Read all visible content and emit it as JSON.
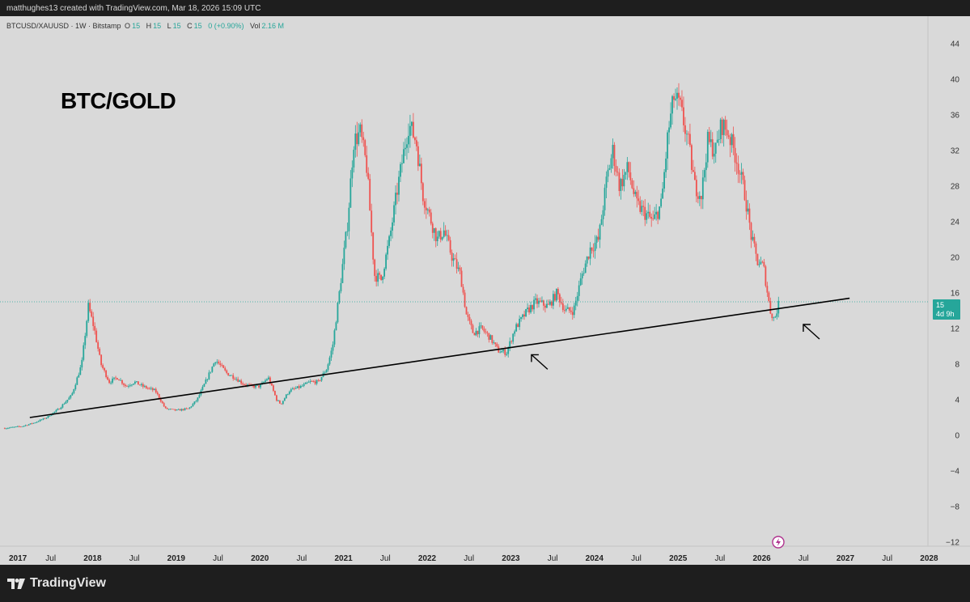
{
  "attribution": "matthughes13 created with TradingView.com, Mar 18, 2026 15:09 UTC",
  "legend": {
    "symbol": "BTCUSD/XAUUSD · 1W · Bitstamp",
    "o_label": "O",
    "o_value": "15",
    "h_label": "H",
    "h_value": "15",
    "l_label": "L",
    "l_value": "15",
    "c_label": "C",
    "c_value": "15",
    "change": "0 (+0.90%)",
    "vol_label": "Vol",
    "vol_value": "2.16 M"
  },
  "overlay_title": "BTC/GOLD",
  "price_badge": {
    "price": "15",
    "countdown": "4d 9h"
  },
  "footer": {
    "brand": "TradingView"
  },
  "colors": {
    "up": "#26a69a",
    "down": "#ef5350",
    "background": "#d9d9d9",
    "trendline": "#000000"
  },
  "chart_data": {
    "type": "candlestick",
    "symbol": "BTCUSD/XAUUSD",
    "interval": "1W",
    "exchange": "Bitstamp",
    "title": "BTC/GOLD",
    "x_time_range": [
      "2017-01",
      "2028-01"
    ],
    "y_range": [
      -13,
      47
    ],
    "y_ticks": [
      44,
      40,
      36,
      32,
      28,
      24,
      20,
      16,
      12,
      8,
      4,
      0,
      -4,
      -8,
      -12
    ],
    "y_tick_labels": [
      "44",
      "40",
      "36",
      "32",
      "28",
      "24",
      "20",
      "16",
      "12",
      "8",
      "4",
      "0",
      "−4",
      "−8",
      "−12"
    ],
    "x_tick_labels": [
      {
        "t": 2017.0,
        "label": "2017",
        "year": true
      },
      {
        "t": 2017.5,
        "label": "Jul"
      },
      {
        "t": 2018.0,
        "label": "2018",
        "year": true
      },
      {
        "t": 2018.5,
        "label": "Jul"
      },
      {
        "t": 2019.0,
        "label": "2019",
        "year": true
      },
      {
        "t": 2019.5,
        "label": "Jul"
      },
      {
        "t": 2020.0,
        "label": "2020",
        "year": true
      },
      {
        "t": 2020.5,
        "label": "Jul"
      },
      {
        "t": 2021.0,
        "label": "2021",
        "year": true
      },
      {
        "t": 2021.5,
        "label": "Jul"
      },
      {
        "t": 2022.0,
        "label": "2022",
        "year": true
      },
      {
        "t": 2022.5,
        "label": "Jul"
      },
      {
        "t": 2023.0,
        "label": "2023",
        "year": true
      },
      {
        "t": 2023.5,
        "label": "Jul"
      },
      {
        "t": 2024.0,
        "label": "2024",
        "year": true
      },
      {
        "t": 2024.5,
        "label": "Jul"
      },
      {
        "t": 2025.0,
        "label": "2025",
        "year": true
      },
      {
        "t": 2025.5,
        "label": "Jul"
      },
      {
        "t": 2026.0,
        "label": "2026",
        "year": true
      },
      {
        "t": 2026.5,
        "label": "Jul"
      },
      {
        "t": 2027.0,
        "label": "2027",
        "year": true
      },
      {
        "t": 2027.5,
        "label": "Jul"
      },
      {
        "t": 2028.0,
        "label": "2028",
        "year": true
      }
    ],
    "last_price": 15,
    "price_path": [
      [
        2016.95,
        0.8
      ],
      [
        2017.15,
        1.0
      ],
      [
        2017.3,
        1.4
      ],
      [
        2017.45,
        2.0
      ],
      [
        2017.6,
        3.0
      ],
      [
        2017.75,
        4.5
      ],
      [
        2017.87,
        8.0
      ],
      [
        2017.95,
        14.5
      ],
      [
        2018.02,
        12.0
      ],
      [
        2018.1,
        8.0
      ],
      [
        2018.2,
        6.0
      ],
      [
        2018.3,
        6.5
      ],
      [
        2018.4,
        5.5
      ],
      [
        2018.5,
        6.0
      ],
      [
        2018.6,
        5.5
      ],
      [
        2018.75,
        5.0
      ],
      [
        2018.87,
        3.0
      ],
      [
        2019.0,
        2.8
      ],
      [
        2019.15,
        3.0
      ],
      [
        2019.25,
        4.0
      ],
      [
        2019.35,
        6.0
      ],
      [
        2019.47,
        8.5
      ],
      [
        2019.6,
        7.0
      ],
      [
        2019.7,
        6.5
      ],
      [
        2019.8,
        5.8
      ],
      [
        2019.9,
        5.5
      ],
      [
        2020.0,
        5.5
      ],
      [
        2020.1,
        6.5
      ],
      [
        2020.2,
        4.0
      ],
      [
        2020.25,
        3.5
      ],
      [
        2020.35,
        5.0
      ],
      [
        2020.5,
        5.5
      ],
      [
        2020.6,
        6.0
      ],
      [
        2020.7,
        6.0
      ],
      [
        2020.8,
        7.5
      ],
      [
        2020.87,
        10.0
      ],
      [
        2020.95,
        16.0
      ],
      [
        2021.05,
        24.0
      ],
      [
        2021.12,
        33.0
      ],
      [
        2021.2,
        34.0
      ],
      [
        2021.28,
        30.0
      ],
      [
        2021.37,
        18.0
      ],
      [
        2021.45,
        17.5
      ],
      [
        2021.55,
        22.0
      ],
      [
        2021.65,
        28.0
      ],
      [
        2021.78,
        35.0
      ],
      [
        2021.87,
        33.0
      ],
      [
        2021.95,
        27.0
      ],
      [
        2022.05,
        24.0
      ],
      [
        2022.12,
        22.0
      ],
      [
        2022.2,
        23.0
      ],
      [
        2022.3,
        20.0
      ],
      [
        2022.4,
        18.0
      ],
      [
        2022.47,
        13.5
      ],
      [
        2022.55,
        11.5
      ],
      [
        2022.65,
        12.0
      ],
      [
        2022.75,
        11.0
      ],
      [
        2022.85,
        9.5
      ],
      [
        2022.95,
        9.3
      ],
      [
        2023.05,
        12.0
      ],
      [
        2023.2,
        14.0
      ],
      [
        2023.3,
        15.0
      ],
      [
        2023.45,
        14.5
      ],
      [
        2023.55,
        16.0
      ],
      [
        2023.65,
        14.0
      ],
      [
        2023.75,
        14.0
      ],
      [
        2023.85,
        18.0
      ],
      [
        2023.95,
        21.0
      ],
      [
        2024.05,
        22.0
      ],
      [
        2024.15,
        29.0
      ],
      [
        2024.22,
        32.0
      ],
      [
        2024.3,
        28.0
      ],
      [
        2024.4,
        30.0
      ],
      [
        2024.5,
        26.0
      ],
      [
        2024.6,
        25.0
      ],
      [
        2024.7,
        24.0
      ],
      [
        2024.8,
        26.0
      ],
      [
        2024.88,
        34.0
      ],
      [
        2024.95,
        38.0
      ],
      [
        2025.02,
        37.0
      ],
      [
        2025.12,
        33.0
      ],
      [
        2025.2,
        28.0
      ],
      [
        2025.28,
        27.0
      ],
      [
        2025.35,
        33.0
      ],
      [
        2025.45,
        32.0
      ],
      [
        2025.52,
        35.0
      ],
      [
        2025.6,
        34.0
      ],
      [
        2025.7,
        31.0
      ],
      [
        2025.8,
        27.0
      ],
      [
        2025.88,
        22.0
      ],
      [
        2025.95,
        19.5
      ],
      [
        2026.02,
        19.0
      ],
      [
        2026.1,
        14.0
      ],
      [
        2026.15,
        13.0
      ],
      [
        2026.21,
        15.0
      ]
    ],
    "trendline": {
      "start": [
        2017.25,
        2.0
      ],
      "end": [
        2027.05,
        15.4
      ]
    },
    "annotations": [
      {
        "type": "arrow",
        "pointing_to": [
          2023.15,
          9.6
        ],
        "direction": "up-left"
      },
      {
        "type": "arrow",
        "pointing_to": [
          2026.4,
          13.0
        ],
        "direction": "up-left"
      }
    ]
  }
}
